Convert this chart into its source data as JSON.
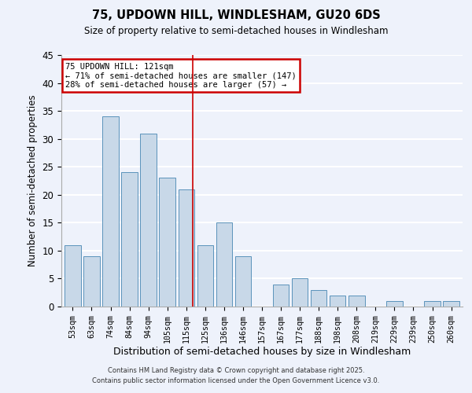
{
  "title": "75, UPDOWN HILL, WINDLESHAM, GU20 6DS",
  "subtitle": "Size of property relative to semi-detached houses in Windlesham",
  "xlabel": "Distribution of semi-detached houses by size in Windlesham",
  "ylabel": "Number of semi-detached properties",
  "bar_color": "#c8d8e8",
  "bar_edge_color": "#5b93bb",
  "background_color": "#eef2fb",
  "grid_color": "#ffffff",
  "categories": [
    "53sqm",
    "63sqm",
    "74sqm",
    "84sqm",
    "94sqm",
    "105sqm",
    "115sqm",
    "125sqm",
    "136sqm",
    "146sqm",
    "157sqm",
    "167sqm",
    "177sqm",
    "188sqm",
    "198sqm",
    "208sqm",
    "219sqm",
    "229sqm",
    "239sqm",
    "250sqm",
    "260sqm"
  ],
  "values": [
    11,
    9,
    34,
    24,
    31,
    23,
    21,
    11,
    15,
    9,
    0,
    4,
    5,
    3,
    2,
    2,
    0,
    1,
    0,
    1,
    1
  ],
  "ylim": [
    0,
    45
  ],
  "yticks": [
    0,
    5,
    10,
    15,
    20,
    25,
    30,
    35,
    40,
    45
  ],
  "annotation_title": "75 UPDOWN HILL: 121sqm",
  "annotation_line1": "← 71% of semi-detached houses are smaller (147)",
  "annotation_line2": "28% of semi-detached houses are larger (57) →",
  "annotation_box_color": "#ffffff",
  "annotation_border_color": "#cc0000",
  "marker_bar_index": 6,
  "marker_color": "#cc0000",
  "footer_line1": "Contains HM Land Registry data © Crown copyright and database right 2025.",
  "footer_line2": "Contains public sector information licensed under the Open Government Licence v3.0."
}
